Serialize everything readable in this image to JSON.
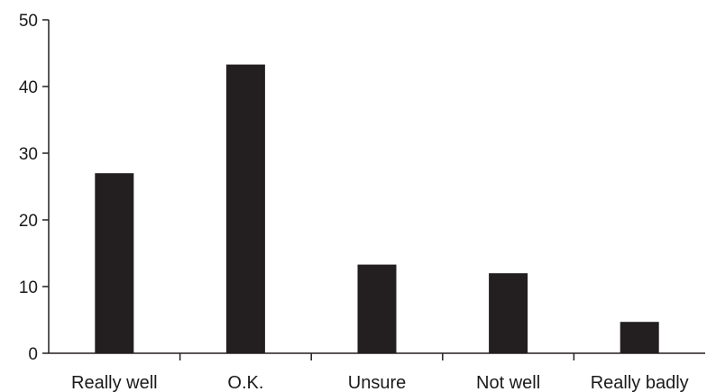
{
  "chart_data": {
    "type": "bar",
    "title": "",
    "xlabel": "",
    "ylabel": "",
    "categories": [
      "Really well",
      "O.K.",
      "Unsure",
      "Not well",
      "Really badly"
    ],
    "values": [
      27,
      43.3,
      13.3,
      12,
      4.7
    ],
    "ylim": [
      0,
      50
    ],
    "yticks": [
      0,
      10,
      20,
      30,
      40,
      50
    ],
    "grid": false,
    "legend": "none",
    "bar_color": "#231f20",
    "axis_color": "#231f20"
  }
}
